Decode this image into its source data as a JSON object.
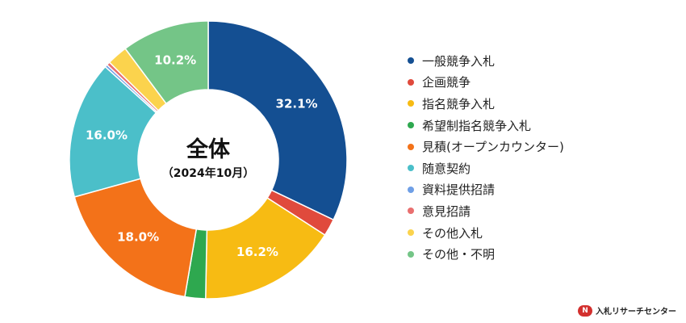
{
  "chart_data": {
    "type": "pie",
    "center_title": "全体",
    "center_subtitle": "（2024年10月）",
    "categories": [
      "一般競争入札",
      "企画競争",
      "指名競争入札",
      "希望制指名競争入札",
      "見積(オープンカウンター)",
      "随意契約",
      "資料提供招請",
      "意見招請",
      "その他入札",
      "その他・不明"
    ],
    "values": [
      32.1,
      2.0,
      16.2,
      2.4,
      18.0,
      16.0,
      0.3,
      0.4,
      2.4,
      10.2
    ],
    "data_labels": [
      "32.1%",
      "",
      "16.2%",
      "",
      "18.0%",
      "16.0%",
      "",
      "",
      "",
      "10.2%"
    ],
    "colors": [
      "#144f92",
      "#e04a3c",
      "#f7bb13",
      "#2ea84f",
      "#f37219",
      "#4bbfc9",
      "#6f9fe6",
      "#e96f6f",
      "#fbd34d",
      "#74c587"
    ],
    "legend_position": "right"
  },
  "logo": {
    "mark": "N",
    "text": "入札リサーチセンター"
  }
}
